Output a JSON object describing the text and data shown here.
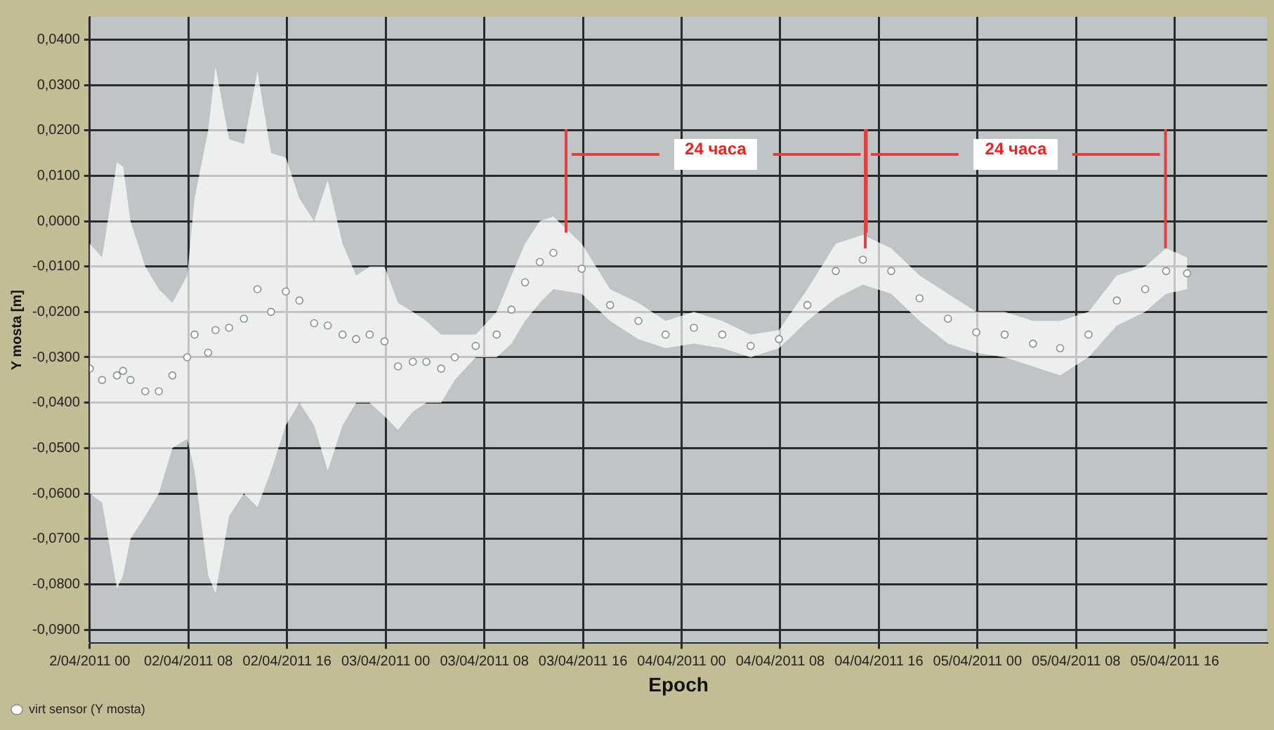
{
  "chart_data": {
    "type": "scatter",
    "xlabel": "Epoch",
    "ylabel": "Y mosta [m]",
    "xlim": [
      "2011-04-02T00:00",
      "2011-04-05T23:30"
    ],
    "xticks": [
      {
        "value": "2011-04-02T00:00",
        "label": "2/04/2011 00"
      },
      {
        "value": "2011-04-02T08:00",
        "label": "02/04/2011 08"
      },
      {
        "value": "2011-04-02T16:00",
        "label": "02/04/2011 16"
      },
      {
        "value": "2011-04-03T00:00",
        "label": "03/04/2011 00"
      },
      {
        "value": "2011-04-03T08:00",
        "label": "03/04/2011 08"
      },
      {
        "value": "2011-04-03T16:00",
        "label": "03/04/2011 16"
      },
      {
        "value": "2011-04-04T00:00",
        "label": "04/04/2011 00"
      },
      {
        "value": "2011-04-04T08:00",
        "label": "04/04/2011 08"
      },
      {
        "value": "2011-04-04T16:00",
        "label": "04/04/2011 16"
      },
      {
        "value": "2011-04-05T00:00",
        "label": "05/04/2011 00"
      },
      {
        "value": "2011-04-05T08:00",
        "label": "05/04/2011 08"
      },
      {
        "value": "2011-04-05T16:00",
        "label": "05/04/2011 16"
      }
    ],
    "ylim": [
      -0.093,
      0.045
    ],
    "yticks": [
      {
        "value": 0.04,
        "label": "0,0400"
      },
      {
        "value": 0.03,
        "label": "0,0300"
      },
      {
        "value": 0.02,
        "label": "0,0200"
      },
      {
        "value": 0.01,
        "label": "0,0100"
      },
      {
        "value": 0,
        "label": "0,0000"
      },
      {
        "value": -0.01,
        "label": "-0,0100"
      },
      {
        "value": -0.02,
        "label": "-0,0200"
      },
      {
        "value": -0.03,
        "label": "-0,0300"
      },
      {
        "value": -0.04,
        "label": "-0,0400"
      },
      {
        "value": -0.05,
        "label": "-0,0500"
      },
      {
        "value": -0.06,
        "label": "-0,0600"
      },
      {
        "value": -0.07,
        "label": "-0,0700"
      },
      {
        "value": -0.08,
        "label": "-0,0800"
      },
      {
        "value": -0.09,
        "label": "-0,0900"
      }
    ],
    "grid": true,
    "legend": "bottom left",
    "marker": "circle",
    "annotations": [
      "24 часа",
      "24 часа"
    ],
    "series": [
      {
        "name": "virt sensor (Y mosta)",
        "color": "#ffffff",
        "x": [
          "2011-04-02T00:00",
          "2011-04-02T01:00",
          "2011-04-02T02:12",
          "2011-04-02T02:42",
          "2011-04-02T03:18",
          "2011-04-02T04:30",
          "2011-04-02T05:36",
          "2011-04-02T06:42",
          "2011-04-02T07:54",
          "2011-04-02T08:30",
          "2011-04-02T09:36",
          "2011-04-02T10:12",
          "2011-04-02T11:18",
          "2011-04-02T12:30",
          "2011-04-02T13:36",
          "2011-04-02T14:42",
          "2011-04-02T15:54",
          "2011-04-02T17:00",
          "2011-04-02T18:12",
          "2011-04-02T19:18",
          "2011-04-02T20:30",
          "2011-04-02T21:36",
          "2011-04-02T22:42",
          "2011-04-02T23:54",
          "2011-04-03T01:00",
          "2011-04-03T02:12",
          "2011-04-03T03:18",
          "2011-04-03T04:30",
          "2011-04-03T05:36",
          "2011-04-03T07:18",
          "2011-04-03T09:00",
          "2011-04-03T10:12",
          "2011-04-03T11:18",
          "2011-04-03T12:30",
          "2011-04-03T13:36",
          "2011-04-03T15:54",
          "2011-04-03T18:12",
          "2011-04-03T20:30",
          "2011-04-03T22:42",
          "2011-04-04T01:00",
          "2011-04-04T03:18",
          "2011-04-04T05:36",
          "2011-04-04T07:54",
          "2011-04-04T10:12",
          "2011-04-04T12:30",
          "2011-04-04T14:42",
          "2011-04-04T17:00",
          "2011-04-04T19:18",
          "2011-04-04T21:36",
          "2011-04-04T23:54",
          "2011-04-05T02:12",
          "2011-04-05T04:30",
          "2011-04-05T06:42",
          "2011-04-05T09:00",
          "2011-04-05T11:18",
          "2011-04-05T13:36",
          "2011-04-05T15:18",
          "2011-04-05T17:00"
        ],
        "values": [
          -0.0325,
          -0.035,
          -0.034,
          -0.033,
          -0.035,
          -0.0375,
          -0.0375,
          -0.034,
          -0.03,
          -0.025,
          -0.029,
          -0.024,
          -0.0235,
          -0.0215,
          -0.015,
          -0.02,
          -0.0155,
          -0.0175,
          -0.0225,
          -0.023,
          -0.025,
          -0.026,
          -0.025,
          -0.0265,
          -0.032,
          -0.031,
          -0.031,
          -0.0325,
          -0.03,
          -0.0275,
          -0.025,
          -0.0195,
          -0.0135,
          -0.009,
          -0.007,
          -0.0105,
          -0.0185,
          -0.022,
          -0.025,
          -0.0235,
          -0.025,
          -0.0275,
          -0.026,
          -0.0185,
          -0.011,
          -0.0085,
          -0.011,
          -0.017,
          -0.0215,
          -0.0245,
          -0.025,
          -0.027,
          -0.028,
          -0.025,
          -0.0175,
          -0.015,
          -0.011,
          -0.0115
        ],
        "upper": [
          -0.005,
          -0.008,
          0.013,
          0.012,
          0.0,
          -0.01,
          -0.015,
          -0.018,
          -0.012,
          0.005,
          0.02,
          0.034,
          0.018,
          0.017,
          0.033,
          0.015,
          0.014,
          0.005,
          0.0,
          0.009,
          -0.005,
          -0.012,
          -0.01,
          -0.01,
          -0.018,
          -0.02,
          -0.022,
          -0.025,
          -0.025,
          -0.025,
          -0.02,
          -0.012,
          -0.005,
          0.0,
          0.001,
          -0.005,
          -0.015,
          -0.018,
          -0.022,
          -0.02,
          -0.022,
          -0.025,
          -0.024,
          -0.015,
          -0.005,
          -0.003,
          -0.006,
          -0.012,
          -0.016,
          -0.02,
          -0.02,
          -0.022,
          -0.022,
          -0.02,
          -0.012,
          -0.01,
          -0.006,
          -0.008
        ],
        "lower": [
          -0.06,
          -0.062,
          -0.081,
          -0.078,
          -0.07,
          -0.065,
          -0.06,
          -0.05,
          -0.048,
          -0.055,
          -0.078,
          -0.082,
          -0.065,
          -0.06,
          -0.063,
          -0.055,
          -0.045,
          -0.04,
          -0.045,
          -0.055,
          -0.045,
          -0.04,
          -0.04,
          -0.043,
          -0.046,
          -0.042,
          -0.04,
          -0.04,
          -0.035,
          -0.03,
          -0.03,
          -0.027,
          -0.022,
          -0.018,
          -0.015,
          -0.016,
          -0.022,
          -0.026,
          -0.028,
          -0.027,
          -0.028,
          -0.03,
          -0.028,
          -0.022,
          -0.017,
          -0.014,
          -0.016,
          -0.022,
          -0.027,
          -0.029,
          -0.03,
          -0.032,
          -0.034,
          -0.03,
          -0.023,
          -0.02,
          -0.016,
          -0.015
        ]
      }
    ]
  }
}
